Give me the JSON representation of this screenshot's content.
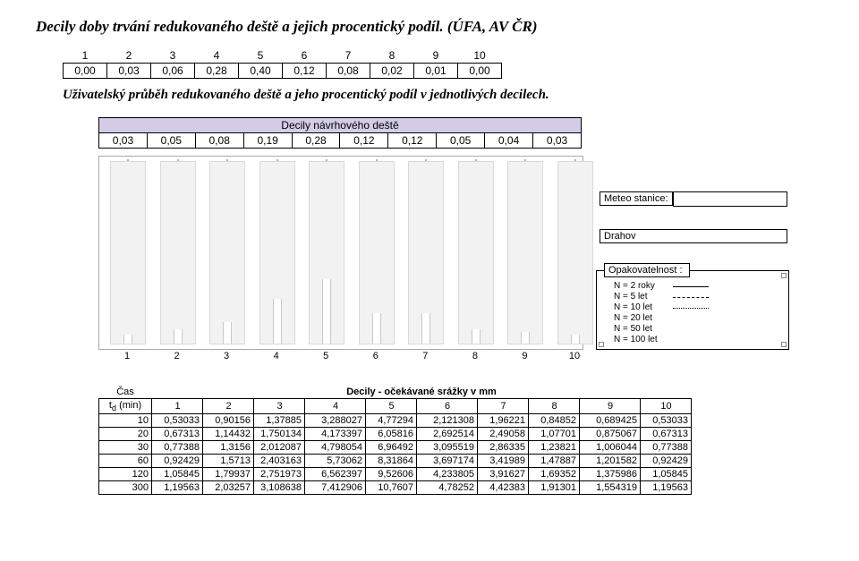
{
  "title": "Decily doby trvání redukovaného deště a jejich procentický podíl. (ÚFA, AV ČR)",
  "subtitle": "Uživatelský průběh redukovaného deště a jeho procentický podíl v jednotlivých decilech.",
  "top_table": {
    "headers": [
      "1",
      "2",
      "3",
      "4",
      "5",
      "6",
      "7",
      "8",
      "9",
      "10"
    ],
    "values": [
      "0,00",
      "0,03",
      "0,06",
      "0,28",
      "0,40",
      "0,12",
      "0,08",
      "0,02",
      "0,01",
      "0,00"
    ]
  },
  "design_table": {
    "title": "Decily návrhového deště",
    "values": [
      "0,03",
      "0,05",
      "0,08",
      "0,19",
      "0,28",
      "0,12",
      "0,12",
      "0,05",
      "0,04",
      "0,03"
    ]
  },
  "chart": {
    "x_labels": [
      "1",
      "2",
      "3",
      "4",
      "5",
      "6",
      "7",
      "8",
      "9",
      "10"
    ],
    "slot_heights": [
      10,
      16,
      24,
      50,
      72,
      34,
      34,
      16,
      13,
      10
    ],
    "meteo_label": "Meteo stanice:",
    "station": "Drahov",
    "opak_label": "Opakovatelnost :",
    "legend": [
      {
        "label": "N = 2 roky",
        "style": "solid"
      },
      {
        "label": "N = 5 let",
        "style": "dashed"
      },
      {
        "label": "N = 10 let",
        "style": "dotted"
      },
      {
        "label": "N = 20 let",
        "style": "hidden"
      },
      {
        "label": "N = 50 let",
        "style": "hidden"
      },
      {
        "label": "N = 100 let",
        "style": "hidden"
      }
    ]
  },
  "big_table": {
    "cas_label": "Čas",
    "row_label": "t",
    "row_label_sub": "d",
    "row_label_unit": " (min)",
    "title": "Decily - očekávané srážky v mm",
    "cols": [
      "1",
      "2",
      "3",
      "4",
      "5",
      "6",
      "7",
      "8",
      "9",
      "10"
    ],
    "rows": [
      {
        "t": "10",
        "v": [
          "0,53033",
          "0,90156",
          "1,37885",
          "3,288027",
          "4,77294",
          "2,121308",
          "1,96221",
          "0,84852",
          "0,689425",
          "0,53033"
        ]
      },
      {
        "t": "20",
        "v": [
          "0,67313",
          "1,14432",
          "1,750134",
          "4,173397",
          "6,05816",
          "2,692514",
          "2,49058",
          "1,07701",
          "0,875067",
          "0,67313"
        ]
      },
      {
        "t": "30",
        "v": [
          "0,77388",
          "1,3156",
          "2,012087",
          "4,798054",
          "6,96492",
          "3,095519",
          "2,86335",
          "1,23821",
          "1,006044",
          "0,77388"
        ]
      },
      {
        "t": "60",
        "v": [
          "0,92429",
          "1,5713",
          "2,403163",
          "5,73062",
          "8,31864",
          "3,697174",
          "3,41989",
          "1,47887",
          "1,201582",
          "0,92429"
        ]
      },
      {
        "t": "120",
        "v": [
          "1,05845",
          "1,79937",
          "2,751973",
          "6,562397",
          "9,52606",
          "4,233805",
          "3,91627",
          "1,69352",
          "1,375986",
          "1,05845"
        ]
      },
      {
        "t": "300",
        "v": [
          "1,19563",
          "2,03257",
          "3,108638",
          "7,412906",
          "10,7607",
          "4,78252",
          "4,42383",
          "1,91301",
          "1,554319",
          "1,19563"
        ]
      }
    ]
  }
}
